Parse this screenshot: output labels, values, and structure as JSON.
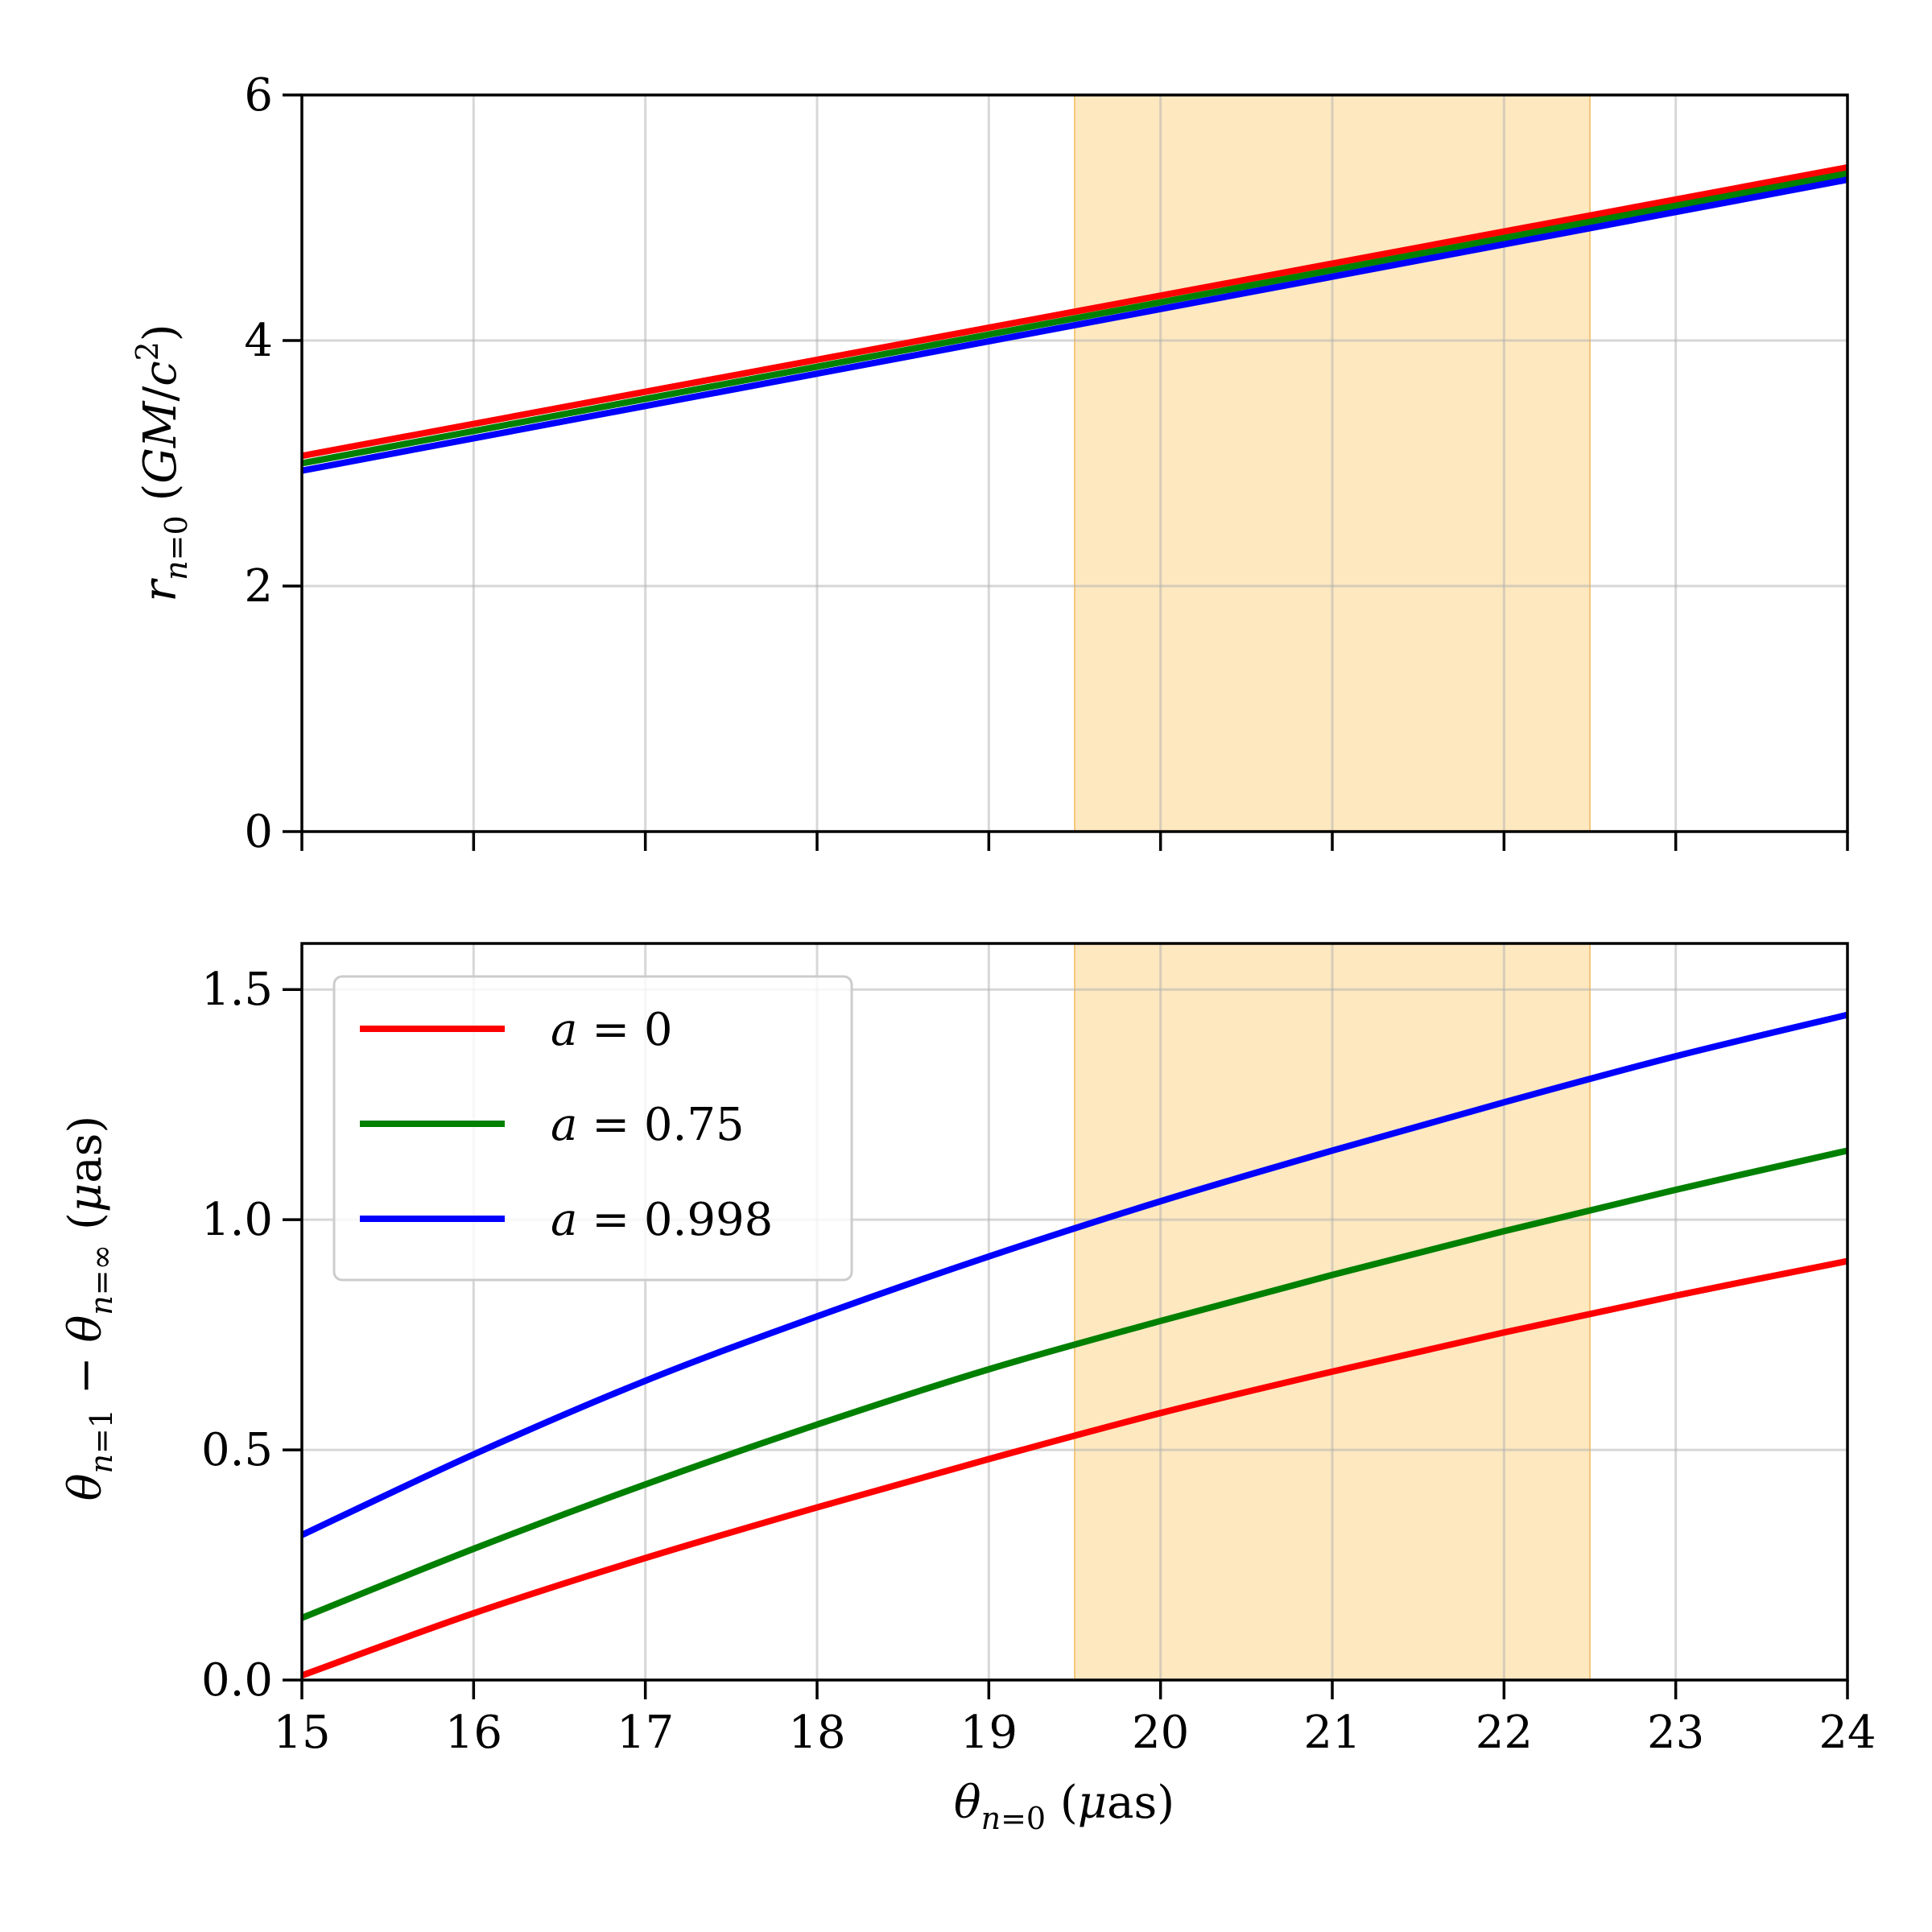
{
  "chart_data": [
    {
      "type": "line",
      "panel": "top",
      "xlim": [
        15,
        24
      ],
      "ylim": [
        0,
        6
      ],
      "x_ticks": [
        15,
        16,
        17,
        18,
        19,
        20,
        21,
        22,
        23,
        24
      ],
      "x_tick_labels_visible": false,
      "y_ticks": [
        0,
        2,
        4,
        6
      ],
      "y_tick_labels": [
        "0",
        "2",
        "4",
        "6"
      ],
      "ylabel": "r_{n=0} (GM/c^2)",
      "xlabel": "",
      "grid": true,
      "shaded_region": {
        "x_range": [
          19.5,
          22.5
        ],
        "color": "#fde8c0"
      },
      "series": [
        {
          "name": "a = 0",
          "color": "#ff0000",
          "x": [
            15,
            24
          ],
          "y": [
            3.06,
            5.41
          ]
        },
        {
          "name": "a = 0.75",
          "color": "#008000",
          "x": [
            15,
            24
          ],
          "y": [
            3.0,
            5.36
          ]
        },
        {
          "name": "a = 0.998",
          "color": "#0000ff",
          "x": [
            15,
            24
          ],
          "y": [
            2.94,
            5.31
          ]
        }
      ]
    },
    {
      "type": "line",
      "panel": "bottom",
      "xlim": [
        15,
        24
      ],
      "ylim": [
        0,
        1.6
      ],
      "x_ticks": [
        15,
        16,
        17,
        18,
        19,
        20,
        21,
        22,
        23,
        24
      ],
      "x_tick_labels": [
        "15",
        "16",
        "17",
        "18",
        "19",
        "20",
        "21",
        "22",
        "23",
        "24"
      ],
      "y_ticks": [
        0,
        0.5,
        1.0,
        1.5
      ],
      "y_tick_labels": [
        "0.0",
        "0.5",
        "1.0",
        "1.5"
      ],
      "xlabel": "θ_{n=0} (μas)",
      "ylabel": "θ_{n=1} − θ_{n=∞} (μas)",
      "grid": true,
      "legend_position": "top-left",
      "shaded_region": {
        "x_range": [
          19.5,
          22.5
        ],
        "color": "#fde8c0"
      },
      "series": [
        {
          "name": "a = 0",
          "color": "#ff0000",
          "x": [
            15,
            16,
            17,
            18,
            19,
            20,
            21,
            22,
            23,
            24
          ],
          "y": [
            0.01,
            0.145,
            0.265,
            0.375,
            0.48,
            0.58,
            0.67,
            0.755,
            0.835,
            0.91
          ]
        },
        {
          "name": "a = 0.75",
          "color": "#008000",
          "x": [
            15,
            16,
            17,
            18,
            19,
            20,
            21,
            22,
            23,
            24
          ],
          "y": [
            0.135,
            0.285,
            0.425,
            0.555,
            0.675,
            0.78,
            0.88,
            0.975,
            1.065,
            1.15
          ]
        },
        {
          "name": "a = 0.998",
          "color": "#0000ff",
          "x": [
            15,
            16,
            17,
            18,
            19,
            20,
            21,
            22,
            23,
            24
          ],
          "y": [
            0.315,
            0.49,
            0.65,
            0.79,
            0.92,
            1.04,
            1.15,
            1.255,
            1.355,
            1.445
          ]
        }
      ],
      "legend": [
        {
          "label_var": "a",
          "label_eq": " = ",
          "label_val": "0",
          "color": "#ff0000"
        },
        {
          "label_var": "a",
          "label_eq": " = ",
          "label_val": "0.75",
          "color": "#008000"
        },
        {
          "label_var": "a",
          "label_eq": " = ",
          "label_val": "0.998",
          "color": "#0000ff"
        }
      ]
    }
  ]
}
